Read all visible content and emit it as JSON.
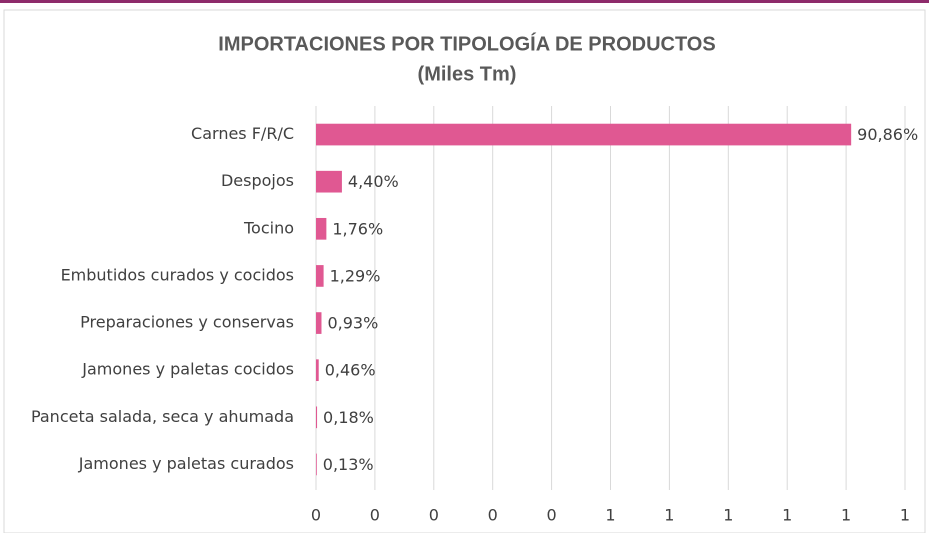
{
  "chart_data": {
    "type": "bar",
    "orientation": "horizontal",
    "title": "IMPORTACIONES  POR TIPOLOGÍA DE PRODUCTOS",
    "subtitle": "(Miles Tm)",
    "categories": [
      "Carnes F/R/C",
      "Despojos",
      "Tocino",
      "Embutidos curados y cocidos",
      "Preparaciones y conservas",
      "Jamones y paletas cocidos",
      "Panceta salada, seca y ahumada",
      "Jamones y paletas curados"
    ],
    "values": [
      0.9086,
      0.044,
      0.0176,
      0.0129,
      0.0093,
      0.0046,
      0.0018,
      0.0013
    ],
    "value_labels": [
      "90,86%",
      "4,40%",
      "1,76%",
      "1,29%",
      "0,93%",
      "0,46%",
      "0,18%",
      "0,13%"
    ],
    "color": "#e05892",
    "xlim": [
      0,
      1
    ],
    "xticks": [
      0,
      {
        "value": 0.1,
        "label": "0"
      },
      {
        "value": 0.2,
        "label": "0"
      },
      {
        "value": 0.3,
        "label": "0"
      },
      {
        "value": 0.4,
        "label": "0"
      },
      {
        "value": 0.5,
        "label": "1"
      },
      {
        "value": 0.6,
        "label": "1"
      },
      {
        "value": 0.7,
        "label": "1"
      },
      {
        "value": 0.8,
        "label": "1"
      },
      {
        "value": 0.9,
        "label": "1"
      },
      1
    ],
    "grid": true
  }
}
